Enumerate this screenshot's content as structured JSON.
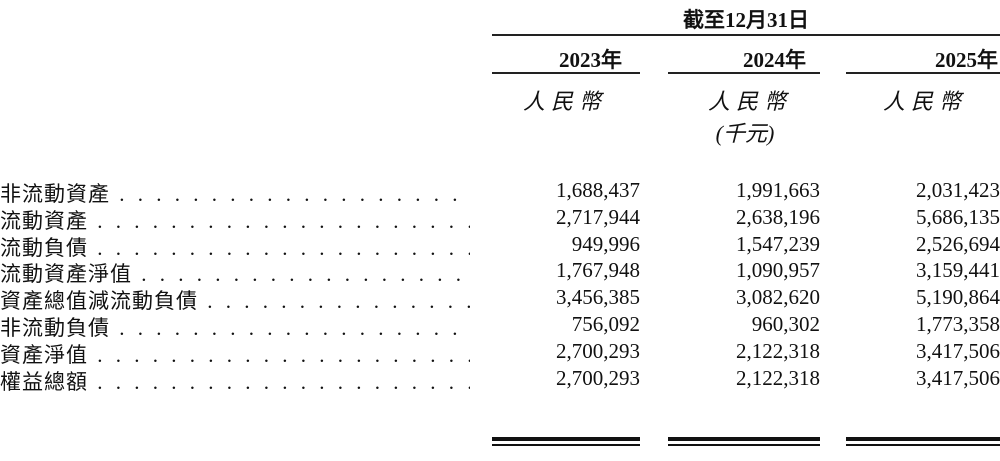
{
  "header": {
    "period": "截至12月31日",
    "columns": [
      {
        "year": "2023年",
        "currency": "人民幣",
        "unit": ""
      },
      {
        "year": "2024年",
        "currency": "人民幣",
        "unit": "(千元)"
      },
      {
        "year": "2025年",
        "currency": "人民幣",
        "unit": ""
      }
    ]
  },
  "rows": [
    {
      "label": "非流動資產",
      "values": [
        "1,688,437",
        "1,991,663",
        "2,031,423"
      ]
    },
    {
      "label": "流動資產",
      "values": [
        "2,717,944",
        "2,638,196",
        "5,686,135"
      ]
    },
    {
      "label": "流動負債",
      "values": [
        "949,996",
        "1,547,239",
        "2,526,694"
      ]
    },
    {
      "label": "流動資產淨值",
      "values": [
        "1,767,948",
        "1,090,957",
        "3,159,441"
      ]
    },
    {
      "label": "資產總值減流動負債",
      "values": [
        "3,456,385",
        "3,082,620",
        "5,190,864"
      ]
    },
    {
      "label": "非流動負債",
      "values": [
        "756,092",
        "960,302",
        "1,773,358"
      ]
    },
    {
      "label": "資產淨值",
      "values": [
        "2,700,293",
        "2,122,318",
        "3,417,506"
      ]
    },
    {
      "label": "權益總額",
      "values": [
        "2,700,293",
        "2,122,318",
        "3,417,506"
      ]
    }
  ]
}
